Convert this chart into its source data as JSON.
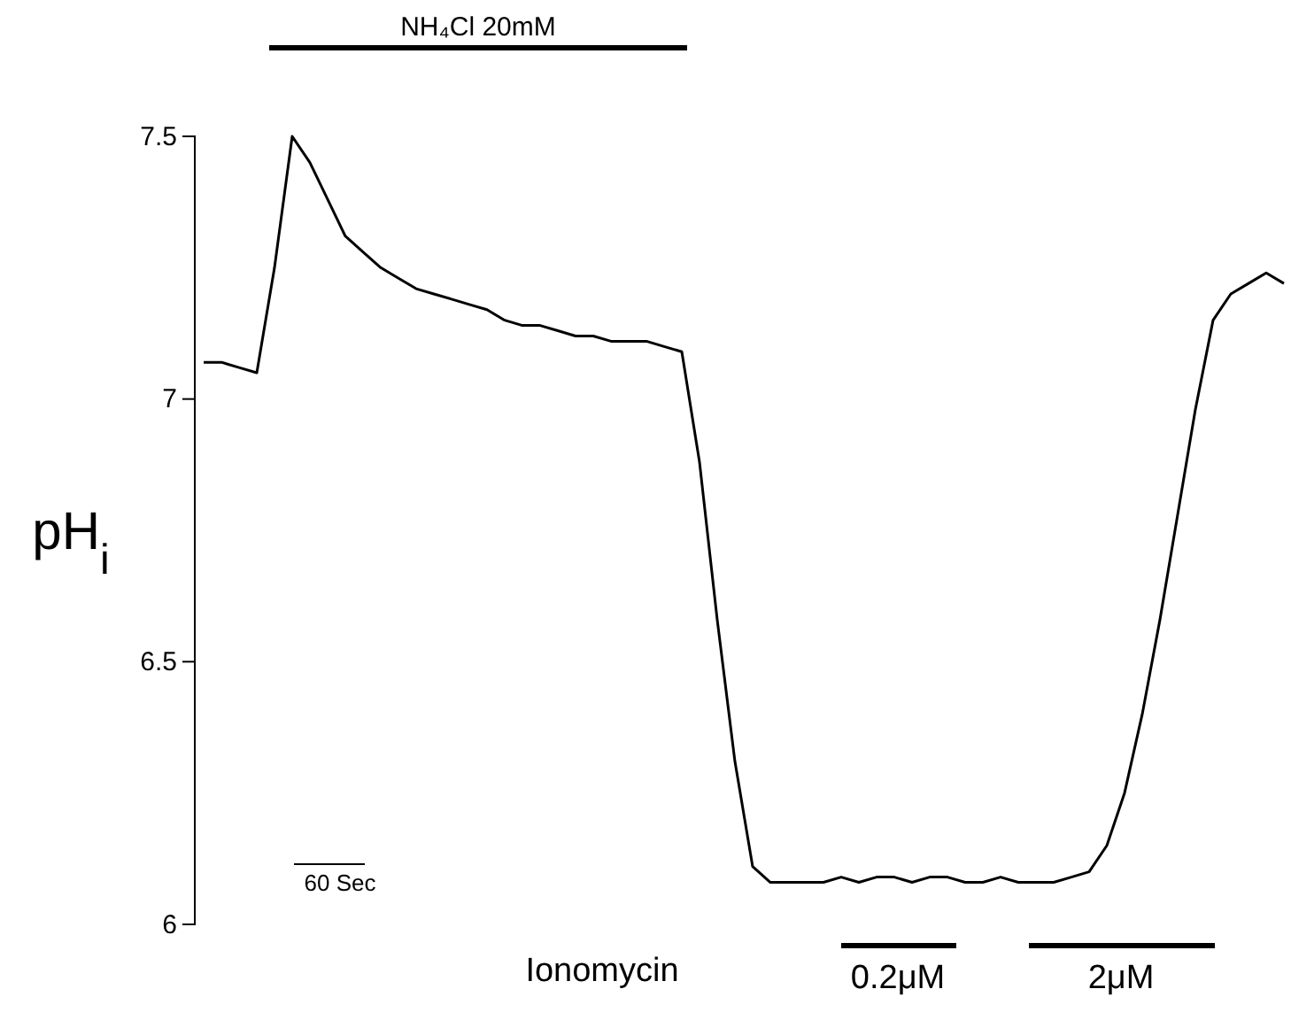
{
  "chart_data": {
    "type": "line",
    "ylabel": "pH$_{i}$",
    "categories": [
      null,
      null,
      null,
      null,
      null,
      null,
      null,
      null,
      null,
      null,
      null,
      null,
      null,
      null,
      null,
      null,
      null,
      null,
      null,
      null,
      null,
      null,
      null,
      null,
      null,
      null,
      null,
      null,
      null,
      null,
      null,
      null,
      null,
      null,
      null,
      null,
      null,
      null,
      null,
      null,
      null,
      null,
      null,
      null,
      null,
      null,
      null,
      null,
      null,
      null,
      null,
      null,
      null,
      null,
      null,
      null,
      null,
      null,
      null,
      null,
      null,
      null
    ],
    "series": [
      {
        "color": "#000000",
        "values": [
          7.07,
          7.07,
          7.06,
          7.05,
          7.25,
          7.5,
          7.45,
          7.38,
          7.31,
          7.28,
          7.25,
          7.23,
          7.21,
          7.2,
          7.19,
          7.18,
          7.17,
          7.15,
          7.14,
          7.14,
          7.13,
          7.12,
          7.12,
          7.11,
          7.11,
          7.11,
          7.1,
          7.09,
          6.88,
          6.58,
          6.31,
          6.11,
          6.08,
          6.08,
          6.08,
          6.08,
          6.09,
          6.08,
          6.09,
          6.09,
          6.08,
          6.09,
          6.09,
          6.08,
          6.08,
          6.09,
          6.08,
          6.08,
          6.08,
          6.09,
          6.1,
          6.15,
          6.25,
          6.4,
          6.58,
          6.78,
          6.98,
          7.15,
          7.2,
          7.22,
          7.24,
          7.22
        ]
      }
    ],
    "ylim": [
      6,
      7.5
    ],
    "yticks": [
      6,
      6.5,
      7,
      7.5
    ],
    "tick_labels": "y",
    "grid": false,
    "marker": "none",
    "line_style": "solid",
    "annotations": [
      "NH₄Cl 20mM",
      "Ionomycin",
      "0.2μM",
      "2μM",
      "60 Sec"
    ]
  }
}
